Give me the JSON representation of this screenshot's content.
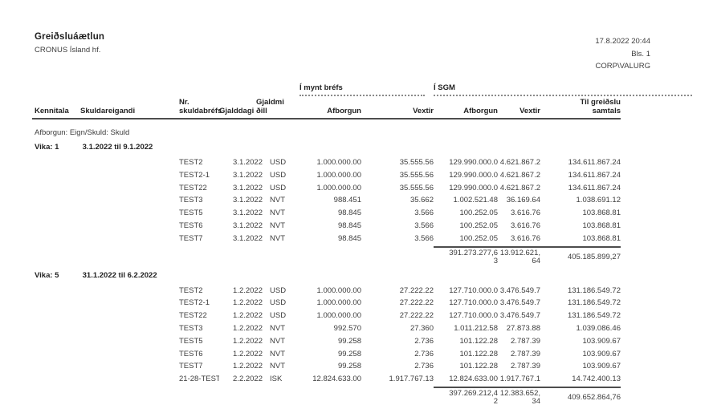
{
  "report": {
    "title": "Greiðsluáætlun",
    "company": "CRONUS Ísland hf.",
    "datetime": "17.8.2022 20:44",
    "page_label": "Bls. 1",
    "user": "CORP\\VALURG",
    "filter_line": "Afborgun: Eign/Skuld: Skuld",
    "group_headers": {
      "mynt": "Í mynt bréfs",
      "sgm": "Í SGM"
    },
    "columns": {
      "kennitala": "Kennitala",
      "skuldareigandi": "Skuldareigandi",
      "nr_skuldabrefs": "Nr.\nskuldabréfs",
      "gjalddagi": "Gjalddagi",
      "gjaldmidill": "Gjaldmi\nðill",
      "afborgun_mynt": "Afborgun",
      "vextir_mynt": "Vextir",
      "afborgun_sgm": "Afborgun",
      "vextir_sgm": "Vextir",
      "til_greidslu_samtals": "Til greiðslu\nsamtals"
    },
    "sections": [
      {
        "week_label": "Vika: 1",
        "week_range": "3.1.2022 til 9.1.2022",
        "rows": [
          [
            "TEST2",
            "3.1.2022",
            "USD",
            "1.000.000.00",
            "35.555.56",
            "129.990.000.0",
            "4.621.867.2",
            "134.611.867.24"
          ],
          [
            "TEST2-1",
            "3.1.2022",
            "USD",
            "1.000.000.00",
            "35.555.56",
            "129.990.000.0",
            "4.621.867.2",
            "134.611.867.24"
          ],
          [
            "TEST22",
            "3.1.2022",
            "USD",
            "1.000.000.00",
            "35.555.56",
            "129.990.000.0",
            "4.621.867.2",
            "134.611.867.24"
          ],
          [
            "TEST3",
            "3.1.2022",
            "NVT",
            "988.451",
            "35.662",
            "1.002.521.48",
            "36.169.64",
            "1.038.691.12"
          ],
          [
            "TEST5",
            "3.1.2022",
            "NVT",
            "98.845",
            "3.566",
            "100.252.05",
            "3.616.76",
            "103.868.81"
          ],
          [
            "TEST6",
            "3.1.2022",
            "NVT",
            "98.845",
            "3.566",
            "100.252.05",
            "3.616.76",
            "103.868.81"
          ],
          [
            "TEST7",
            "3.1.2022",
            "NVT",
            "98.845",
            "3.566",
            "100.252.05",
            "3.616.76",
            "103.868.81"
          ]
        ],
        "totals": {
          "afborgun_line1": "391.273.277,6",
          "afborgun_line2": "3",
          "vextir_line1": "13.912.621,",
          "vextir_line2": "64",
          "samtals": "405.185.899,27"
        }
      },
      {
        "week_label": "Vika: 5",
        "week_range": "31.1.2022 til 6.2.2022",
        "rows": [
          [
            "TEST2",
            "1.2.2022",
            "USD",
            "1.000.000.00",
            "27.222.22",
            "127.710.000.0",
            "3.476.549.7",
            "131.186.549.72"
          ],
          [
            "TEST2-1",
            "1.2.2022",
            "USD",
            "1.000.000.00",
            "27.222.22",
            "127.710.000.0",
            "3.476.549.7",
            "131.186.549.72"
          ],
          [
            "TEST22",
            "1.2.2022",
            "USD",
            "1.000.000.00",
            "27.222.22",
            "127.710.000.0",
            "3.476.549.7",
            "131.186.549.72"
          ],
          [
            "TEST3",
            "1.2.2022",
            "NVT",
            "992.570",
            "27.360",
            "1.011.212.58",
            "27.873.88",
            "1.039.086.46"
          ],
          [
            "TEST5",
            "1.2.2022",
            "NVT",
            "99.258",
            "2.736",
            "101.122.28",
            "2.787.39",
            "103.909.67"
          ],
          [
            "TEST6",
            "1.2.2022",
            "NVT",
            "99.258",
            "2.736",
            "101.122.28",
            "2.787.39",
            "103.909.67"
          ],
          [
            "TEST7",
            "1.2.2022",
            "NVT",
            "99.258",
            "2.736",
            "101.122.28",
            "2.787.39",
            "103.909.67"
          ],
          [
            "21-28-TEST",
            "2.2.2022",
            "ISK",
            "12.824.633.00",
            "1.917.767.13",
            "12.824.633.00",
            "1.917.767.1",
            "14.742.400.13"
          ]
        ],
        "totals": {
          "afborgun_line1": "397.269.212,4",
          "afborgun_line2": "2",
          "vextir_line1": "12.383.652,",
          "vextir_line2": "34",
          "samtals": "409.652.864,76"
        }
      }
    ]
  }
}
